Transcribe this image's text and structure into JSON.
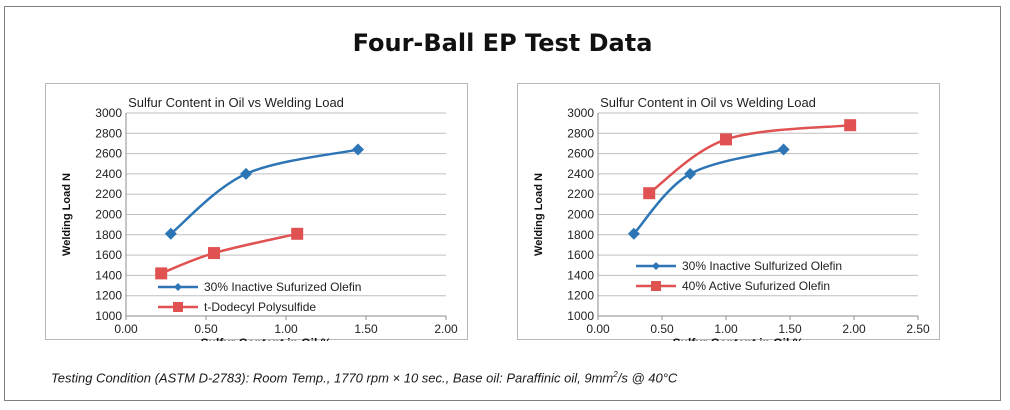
{
  "page": {
    "title": "Four-Ball EP Test Data",
    "footnote": {
      "prefix": "Testing Condition (ASTM D-2783): Room Temp., 1770 rpm × 10 sec., Base oil: Paraffinic oil, 9mm",
      "sup": "2",
      "suffix": "/s @ 40°C"
    }
  },
  "colors": {
    "blue": "#2e75b6",
    "red": "#e05252"
  },
  "chart_data": [
    {
      "type": "line",
      "title": "Sulfur Content in Oil vs Welding Load",
      "xlabel": "Sulfur Content in Oil %",
      "ylabel": "Welding Load N",
      "xlim": [
        0,
        2.0
      ],
      "ylim": [
        1000,
        3000
      ],
      "xticks": [
        "0.00",
        "0.50",
        "1.00",
        "1.50",
        "2.00"
      ],
      "yticks": [
        "1000",
        "1200",
        "1400",
        "1600",
        "1800",
        "2000",
        "2200",
        "2400",
        "2600",
        "2800",
        "3000"
      ],
      "grid": "horizontal-major",
      "legend": "bottom-right",
      "series": [
        {
          "name": "30% Inactive Sufurized Olefin",
          "color": "#2e75b6",
          "marker": "diamond",
          "x": [
            0.28,
            0.75,
            1.45
          ],
          "y": [
            1810,
            2400,
            2640
          ]
        },
        {
          "name": "t-Dodecyl Polysulfide",
          "color": "#e05252",
          "marker": "square",
          "x": [
            0.22,
            0.55,
            1.07
          ],
          "y": [
            1420,
            1620,
            1810
          ]
        }
      ]
    },
    {
      "type": "line",
      "title": "Sulfur Content in Oil vs Welding Load",
      "xlabel": "Sulfur Content in Oil %",
      "ylabel": "Welding Load N",
      "xlim": [
        0,
        2.5
      ],
      "ylim": [
        1000,
        3000
      ],
      "xticks": [
        "0.00",
        "0.50",
        "1.00",
        "1.50",
        "2.00",
        "2.50"
      ],
      "yticks": [
        "1000",
        "1200",
        "1400",
        "1600",
        "1800",
        "2000",
        "2200",
        "2400",
        "2600",
        "2800",
        "3000"
      ],
      "grid": "horizontal-major",
      "legend": "bottom-right",
      "series": [
        {
          "name": "30% Inactive Sulfurized Olefin",
          "color": "#2e75b6",
          "marker": "diamond",
          "x": [
            0.28,
            0.72,
            1.45
          ],
          "y": [
            1810,
            2400,
            2640
          ]
        },
        {
          "name": "40% Active Sufurized Olefin",
          "color": "#e05252",
          "marker": "square",
          "x": [
            0.4,
            1.0,
            1.97
          ],
          "y": [
            2210,
            2740,
            2880
          ]
        }
      ]
    }
  ]
}
